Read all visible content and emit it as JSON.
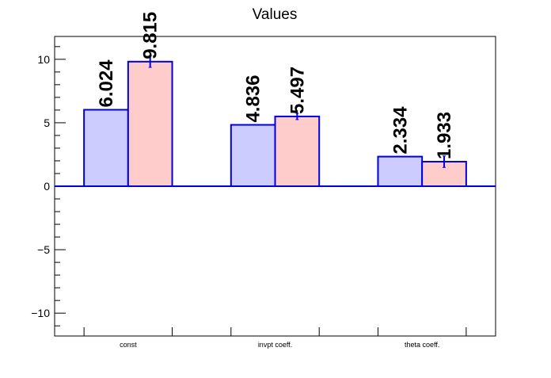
{
  "chart_data": {
    "type": "bar",
    "title": "Values",
    "xlabel": "",
    "ylabel": "",
    "categories": [
      "const",
      "invpt coeff.",
      "theta coeff."
    ],
    "series": [
      {
        "values": [
          6.024,
          4.836,
          2.334
        ],
        "errors": [
          0.0,
          0.0,
          0.0
        ],
        "value_labels": [
          "6.024",
          "4.836",
          "2.334"
        ],
        "fill": "#ccccff",
        "stroke": "#0000dd"
      },
      {
        "values": [
          9.815,
          5.497,
          1.933
        ],
        "errors": [
          0.45,
          0.25,
          0.45
        ],
        "value_labels": [
          "9.815",
          "5.497",
          "1.933"
        ],
        "fill": "#ffcccc",
        "stroke": "#0000dd"
      }
    ],
    "ylim": [
      -11.8,
      11.8
    ],
    "yticks": [
      -10,
      -5,
      0,
      5,
      10
    ],
    "ytick_labels": [
      "−10",
      "−5",
      "0",
      "5",
      "10"
    ],
    "grid": false,
    "legend": "none"
  }
}
